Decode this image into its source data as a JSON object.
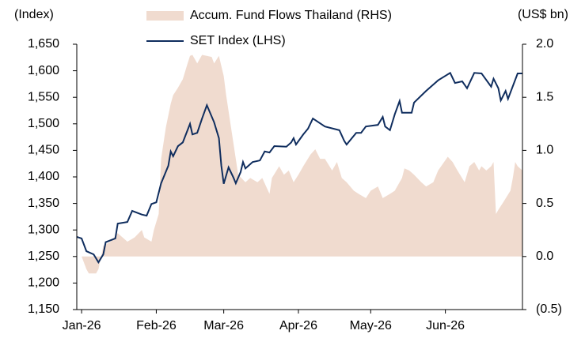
{
  "chart_data": {
    "type": "line",
    "y_label": "(Index)",
    "y2_label": "(US$ bn)",
    "xlim": [
      -2,
      183
    ],
    "xticks": [
      {
        "value": 0,
        "label": "Jan-26"
      },
      {
        "value": 31,
        "label": "Feb-26"
      },
      {
        "value": 59,
        "label": "Mar-26"
      },
      {
        "value": 90,
        "label": "Apr-26"
      },
      {
        "value": 120,
        "label": "May-26"
      },
      {
        "value": 151,
        "label": "Jun-26"
      }
    ],
    "ylim": [
      1150,
      1650
    ],
    "yticks": [
      {
        "value": 1150,
        "label": "1,150"
      },
      {
        "value": 1200,
        "label": "1,200"
      },
      {
        "value": 1250,
        "label": "1,250"
      },
      {
        "value": 1300,
        "label": "1,300"
      },
      {
        "value": 1350,
        "label": "1,350"
      },
      {
        "value": 1400,
        "label": "1,400"
      },
      {
        "value": 1450,
        "label": "1,450"
      },
      {
        "value": 1500,
        "label": "1,500"
      },
      {
        "value": 1550,
        "label": "1,550"
      },
      {
        "value": 1600,
        "label": "1,600"
      },
      {
        "value": 1650,
        "label": "1,650"
      }
    ],
    "y2lim": [
      -0.5,
      2.0
    ],
    "y2ticks": [
      {
        "value": -0.5,
        "label": "(0.5)"
      },
      {
        "value": 0,
        "label": "0.0"
      },
      {
        "value": 0.5,
        "label": "0.5"
      },
      {
        "value": 1,
        "label": "1.0"
      },
      {
        "value": 1.5,
        "label": "1.5"
      },
      {
        "value": 2,
        "label": "2.0"
      }
    ],
    "series": [
      {
        "name": "Accum. Fund Flows Thailand (RHS)",
        "type": "area",
        "axis": "y2",
        "color": "#f0dbcf",
        "x": [
          0,
          2,
          3,
          6,
          7,
          9,
          12,
          15,
          17,
          19,
          22,
          25,
          26,
          29,
          30,
          32,
          33,
          35,
          37,
          38,
          40,
          42,
          44,
          45,
          46,
          48,
          50,
          52,
          54,
          55,
          57,
          59,
          60,
          62,
          64,
          65,
          68,
          70,
          73,
          75,
          78,
          79,
          82,
          84,
          86,
          88,
          90,
          92,
          95,
          97,
          99,
          101,
          104,
          106,
          108,
          110,
          113,
          115,
          118,
          120,
          123,
          125,
          128,
          130,
          133,
          134,
          136,
          138,
          141,
          143,
          146,
          148,
          152,
          154,
          156,
          159,
          161,
          163,
          165,
          166,
          168,
          170,
          171,
          172,
          173,
          175,
          178,
          179,
          180,
          181,
          183
        ],
        "values": [
          0,
          -0.12,
          -0.16,
          -0.16,
          -0.12,
          0.1,
          0.14,
          0.22,
          0.18,
          0.14,
          0.18,
          0.25,
          0.18,
          0.14,
          0.25,
          0.4,
          0.92,
          1.22,
          1.44,
          1.52,
          1.59,
          1.67,
          1.82,
          1.89,
          1.9,
          1.82,
          1.9,
          1.89,
          1.88,
          1.82,
          1.89,
          1.7,
          1.52,
          1.22,
          0.92,
          0.77,
          0.7,
          0.74,
          0.7,
          0.74,
          0.59,
          0.74,
          0.85,
          0.77,
          0.81,
          0.7,
          0.77,
          0.85,
          0.96,
          1.01,
          0.92,
          0.92,
          0.81,
          0.89,
          0.74,
          0.7,
          0.62,
          0.59,
          0.55,
          0.62,
          0.66,
          0.55,
          0.59,
          0.62,
          0.74,
          0.83,
          0.81,
          0.77,
          0.7,
          0.66,
          0.7,
          0.81,
          0.94,
          0.89,
          0.81,
          0.7,
          0.85,
          0.89,
          0.81,
          0.85,
          0.81,
          0.85,
          0.89,
          0.4,
          0.44,
          0.51,
          0.62,
          0.74,
          0.89,
          0.85,
          0.81
        ]
      },
      {
        "name": "SET Index (LHS)",
        "type": "line",
        "axis": "y",
        "color": "#0f2d5e",
        "x": [
          -2,
          0,
          2,
          5,
          7,
          9,
          10,
          14,
          15,
          19,
          21,
          25,
          27,
          29,
          31,
          33,
          36,
          37,
          38,
          40,
          42,
          45,
          46,
          48,
          50,
          52,
          55,
          57,
          58,
          59,
          61,
          63,
          64,
          66,
          67,
          68,
          71,
          74,
          76,
          78,
          80,
          85,
          87,
          88,
          89,
          92,
          94,
          96,
          101,
          107,
          109,
          110,
          114,
          116,
          118,
          123,
          125,
          126,
          128,
          130,
          132,
          133,
          137,
          138,
          143,
          148,
          153,
          155,
          158,
          160,
          163,
          166,
          170,
          171,
          173,
          174,
          176,
          177,
          181,
          183
        ],
        "values": [
          1287,
          1284,
          1260,
          1254,
          1239,
          1254,
          1277,
          1284,
          1312,
          1315,
          1336,
          1329,
          1327,
          1349,
          1352,
          1388,
          1421,
          1448,
          1439,
          1458,
          1465,
          1500,
          1480,
          1483,
          1510,
          1535,
          1503,
          1473,
          1421,
          1387,
          1418,
          1399,
          1388,
          1409,
          1428,
          1416,
          1428,
          1431,
          1448,
          1446,
          1458,
          1457,
          1465,
          1473,
          1461,
          1480,
          1491,
          1510,
          1495,
          1488,
          1468,
          1461,
          1483,
          1483,
          1495,
          1498,
          1513,
          1495,
          1488,
          1518,
          1543,
          1521,
          1521,
          1540,
          1562,
          1582,
          1596,
          1577,
          1580,
          1567,
          1596,
          1595,
          1570,
          1585,
          1567,
          1544,
          1562,
          1547,
          1595,
          1595
        ]
      }
    ]
  }
}
